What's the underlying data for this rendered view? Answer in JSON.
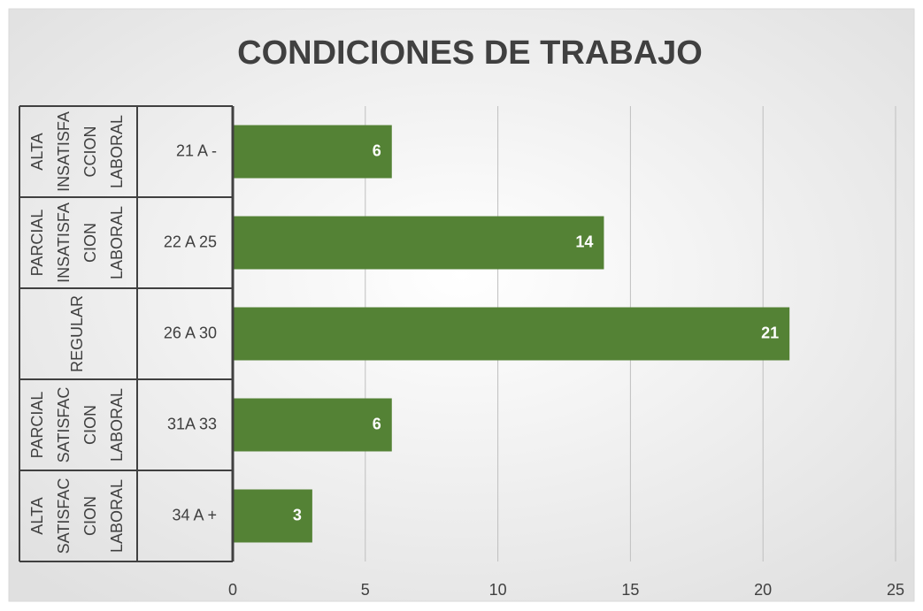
{
  "chart_data": {
    "type": "bar",
    "orientation": "horizontal",
    "title": "CONDICIONES DE TRABAJO",
    "groups": [
      [
        "ALTA",
        "INSATISFA",
        "CCION",
        "LABORAL"
      ],
      [
        "PARCIAL",
        "INSATISFA",
        "CION",
        "LABORAL"
      ],
      [
        "REGULAR"
      ],
      [
        "PARCIAL",
        "SATISFAC",
        "CION",
        "LABORAL"
      ],
      [
        "ALTA",
        "SATISFAC",
        "CION",
        "LABORAL"
      ]
    ],
    "categories": [
      "21 A -",
      "22 A 25",
      "26 A 30",
      "31A 33",
      "34 A +"
    ],
    "values": [
      6,
      14,
      21,
      6,
      3
    ],
    "color": "#548235",
    "xlim": [
      0,
      25
    ],
    "xticks": [
      0,
      5,
      10,
      15,
      20,
      25
    ],
    "grid": true
  }
}
